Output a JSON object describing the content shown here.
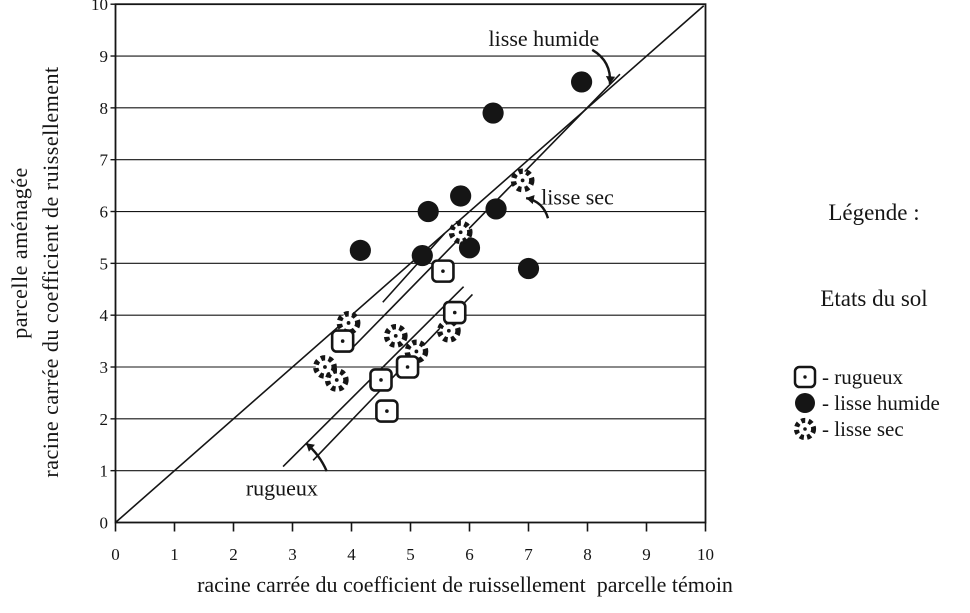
{
  "figure": {
    "background": "#ffffff",
    "ink": "#151515"
  },
  "chart_data": {
    "type": "scatter",
    "xlabel": "racine carrée du coefficient de ruissellement  parcelle témoin",
    "ylabel_outer": "parcelle aménagée",
    "ylabel_inner": "racine carrée du coefficient de ruissellement",
    "xlim": [
      0,
      10
    ],
    "ylim": [
      0,
      10
    ],
    "xticks": [
      0,
      1,
      2,
      3,
      4,
      5,
      6,
      7,
      8,
      9,
      10
    ],
    "yticks": [
      0,
      1,
      2,
      3,
      4,
      5,
      6,
      7,
      8,
      9,
      10
    ],
    "grid": "horizontal",
    "series": [
      {
        "name": "lisse humide",
        "marker": "filled-circle",
        "points": [
          [
            7.9,
            8.5
          ],
          [
            6.4,
            7.9
          ],
          [
            5.85,
            6.3
          ],
          [
            5.3,
            6.0
          ],
          [
            6.45,
            6.05
          ],
          [
            4.15,
            5.25
          ],
          [
            5.2,
            5.15
          ],
          [
            6.0,
            5.3
          ],
          [
            7.0,
            4.9
          ]
        ]
      },
      {
        "name": "lisse sec",
        "marker": "dotted-circle",
        "points": [
          [
            6.9,
            6.6
          ],
          [
            5.85,
            5.6
          ],
          [
            3.95,
            3.85
          ],
          [
            4.75,
            3.6
          ],
          [
            5.65,
            3.7
          ],
          [
            5.1,
            3.3
          ],
          [
            3.55,
            3.0
          ],
          [
            3.75,
            2.75
          ]
        ]
      },
      {
        "name": "rugueux",
        "marker": "open-square-dot",
        "points": [
          [
            5.55,
            4.85
          ],
          [
            5.75,
            4.05
          ],
          [
            3.85,
            3.5
          ],
          [
            4.95,
            3.0
          ],
          [
            4.5,
            2.75
          ],
          [
            4.6,
            2.15
          ]
        ]
      }
    ],
    "lines": [
      {
        "name": "identity",
        "from": [
          0,
          0
        ],
        "to": [
          9.97,
          9.97
        ]
      },
      {
        "name": "lisse humide trend",
        "from": [
          4.0,
          3.35
        ],
        "to": [
          8.55,
          8.65
        ]
      },
      {
        "name": "lisse sec trend",
        "from": [
          3.35,
          1.2
        ],
        "to": [
          6.05,
          4.4
        ]
      },
      {
        "name": "rugueux trend",
        "from": [
          2.84,
          1.08
        ],
        "to": [
          5.9,
          4.55
        ]
      },
      {
        "name": "short segment",
        "from": [
          4.53,
          4.25
        ],
        "to": [
          5.58,
          5.58
        ]
      }
    ],
    "annotations": [
      {
        "id": "lisse-humide",
        "text": "lisse humide",
        "cx": 7.26,
        "cy": 9.35,
        "arrow": {
          "from": [
            8.08,
            9.12
          ],
          "to": [
            8.38,
            8.46
          ],
          "bend": -12
        }
      },
      {
        "id": "lisse-sec",
        "text": "lisse sec",
        "cx": 7.83,
        "cy": 6.29,
        "arrow": {
          "from": [
            7.33,
            5.87
          ],
          "to": [
            6.96,
            6.26
          ],
          "bend": 9
        }
      },
      {
        "id": "rugueux",
        "text": "rugueux",
        "cx": 2.82,
        "cy": 0.68,
        "arrow": {
          "from": [
            3.58,
            0.99
          ],
          "to": [
            3.23,
            1.53
          ],
          "bend": 4
        }
      }
    ]
  },
  "legend": {
    "title": "Légende :",
    "subtitle": "Etats du sol",
    "items": [
      {
        "label": "- rugueux",
        "marker": "open-square-dot"
      },
      {
        "label": "- lisse humide",
        "marker": "filled-circle"
      },
      {
        "label": "- lisse sec",
        "marker": "dotted-circle"
      }
    ]
  }
}
